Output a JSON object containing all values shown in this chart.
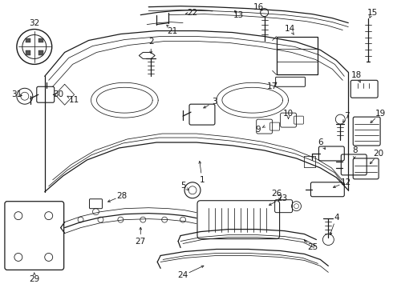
{
  "bg_color": "#ffffff",
  "line_color": "#1a1a1a",
  "lw_main": 0.9,
  "lw_thin": 0.55,
  "figsize": [
    4.9,
    3.6
  ],
  "dpi": 100,
  "fontsize": 7.5
}
